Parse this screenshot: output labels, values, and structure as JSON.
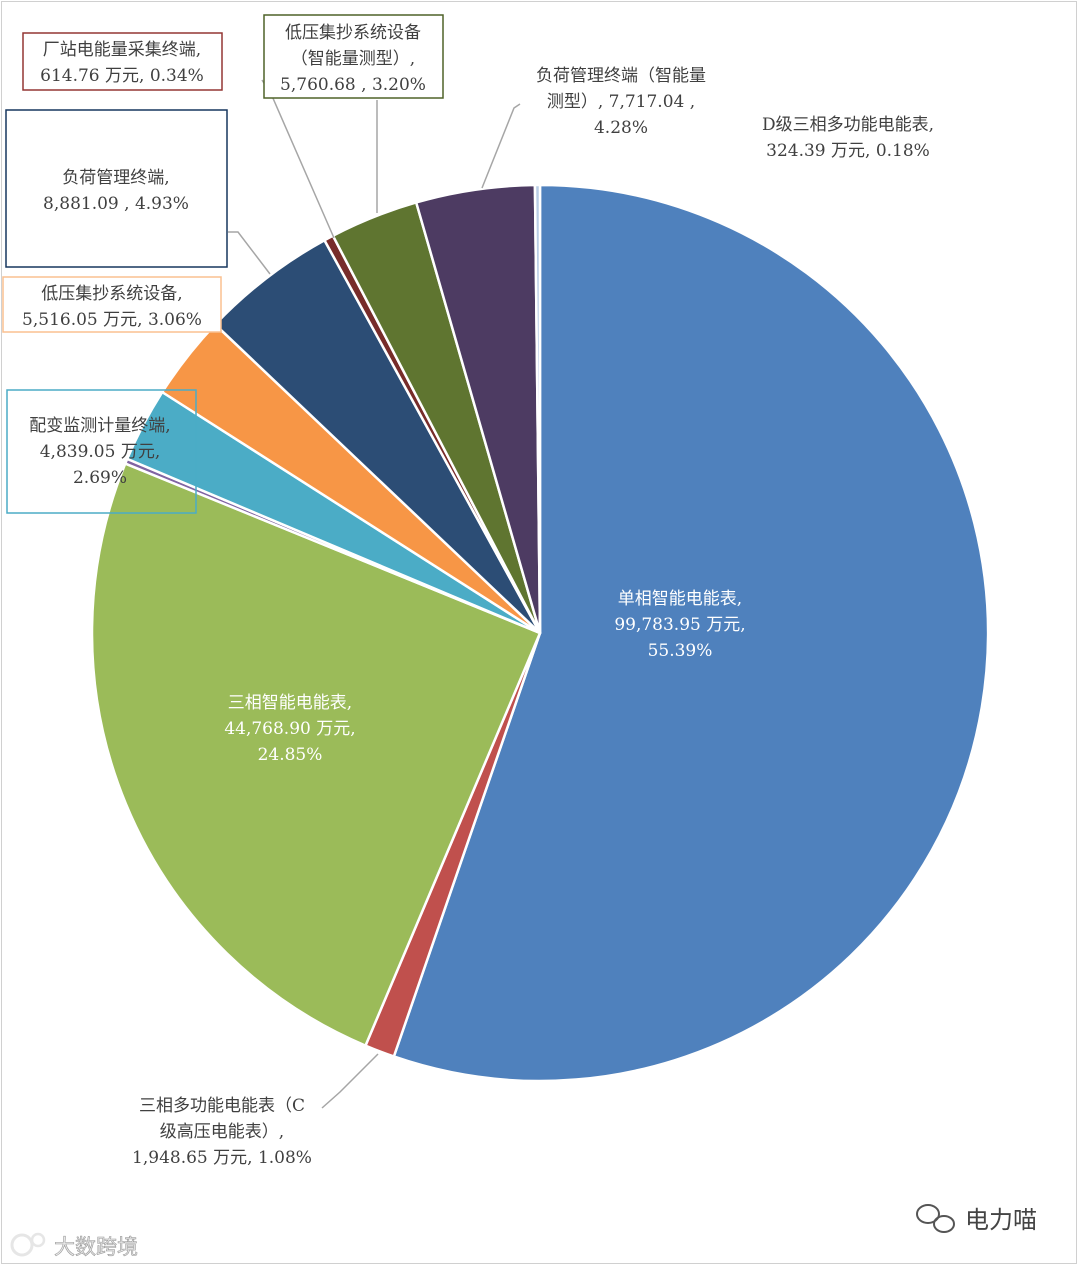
{
  "chart_data": {
    "type": "pie",
    "unit": "万元",
    "slices": [
      {
        "name": "单相智能电能表",
        "value": 99783.95,
        "value_text": "99,783.95",
        "percent": "55.39%",
        "color": "#4F81BD"
      },
      {
        "name": "三相多功能电能表（C级高压电能表）",
        "value": 1948.65,
        "value_text": "1,948.65",
        "percent": "1.08%",
        "color": "#C0504D"
      },
      {
        "name": "三相智能电能表",
        "value": 44768.9,
        "value_text": "44,768.90",
        "percent": "24.85%",
        "color": "#9BBB59"
      },
      {
        "name": "",
        "value": 324.0,
        "value_text": "",
        "percent": "",
        "color": "#8064A2"
      },
      {
        "name": "配变监测计量终端",
        "value": 4839.05,
        "value_text": "4,839.05",
        "percent": "2.69%",
        "color": "#4BACC6"
      },
      {
        "name": "低压集抄系统设备",
        "value": 5516.05,
        "value_text": "5,516.05",
        "percent": "3.06%",
        "color": "#F79646"
      },
      {
        "name": "负荷管理终端",
        "value": 8881.09,
        "value_text": "8,881.09",
        "percent": "4.93%",
        "color": "#2C4D75"
      },
      {
        "name": "厂站电能量采集终端",
        "value": 614.76,
        "value_text": "614.76",
        "percent": "0.34%",
        "color": "#772C2A"
      },
      {
        "name": "低压集抄系统设备（智能量测型）",
        "value": 5760.68,
        "value_text": "5,760.68",
        "percent": "3.20%",
        "color": "#5F7530"
      },
      {
        "name": "负荷管理终端（智能量测型）",
        "value": 7717.04,
        "value_text": "7,717.04",
        "percent": "4.28%",
        "color": "#4D3B62"
      },
      {
        "name": "D级三相多功能电能表",
        "value": 324.39,
        "value_text": "324.39",
        "percent": "0.18%",
        "color": "#B9CDE5"
      }
    ],
    "labels": {
      "single_phase": [
        "单相智能电能表,",
        "99,783.95 万元,",
        "55.39%"
      ],
      "three_phase_smart": [
        "三相智能电能表,",
        "44,768.90 万元,",
        "24.85%"
      ],
      "three_phase_c": [
        "三相多功能电能表（C",
        "级高压电能表）,",
        "1,948.65 万元, 1.08%"
      ],
      "distribution": [
        "配变监测计量终端,",
        "4,839.05 万元,",
        "2.69%"
      ],
      "low_voltage": [
        "低压集抄系统设备,",
        "5,516.05 万元, 3.06%"
      ],
      "load_mgmt": [
        "负荷管理终端,",
        "8,881.09 ,  4.93%"
      ],
      "station": [
        "厂站电能量采集终端,",
        "614.76 万元, 0.34%"
      ],
      "low_voltage_smart": [
        "低压集抄系统设备",
        "（智能量测型）,",
        "5,760.68 ,  3.20%"
      ],
      "load_mgmt_smart": [
        "负荷管理终端（智能量",
        "测型）,  7,717.04 ,",
        "4.28%"
      ],
      "d_class": [
        "D级三相多功能电能表,",
        "324.39 万元, 0.18%"
      ]
    }
  },
  "watermark_left": "大数跨境",
  "watermark_right": "电力喵"
}
